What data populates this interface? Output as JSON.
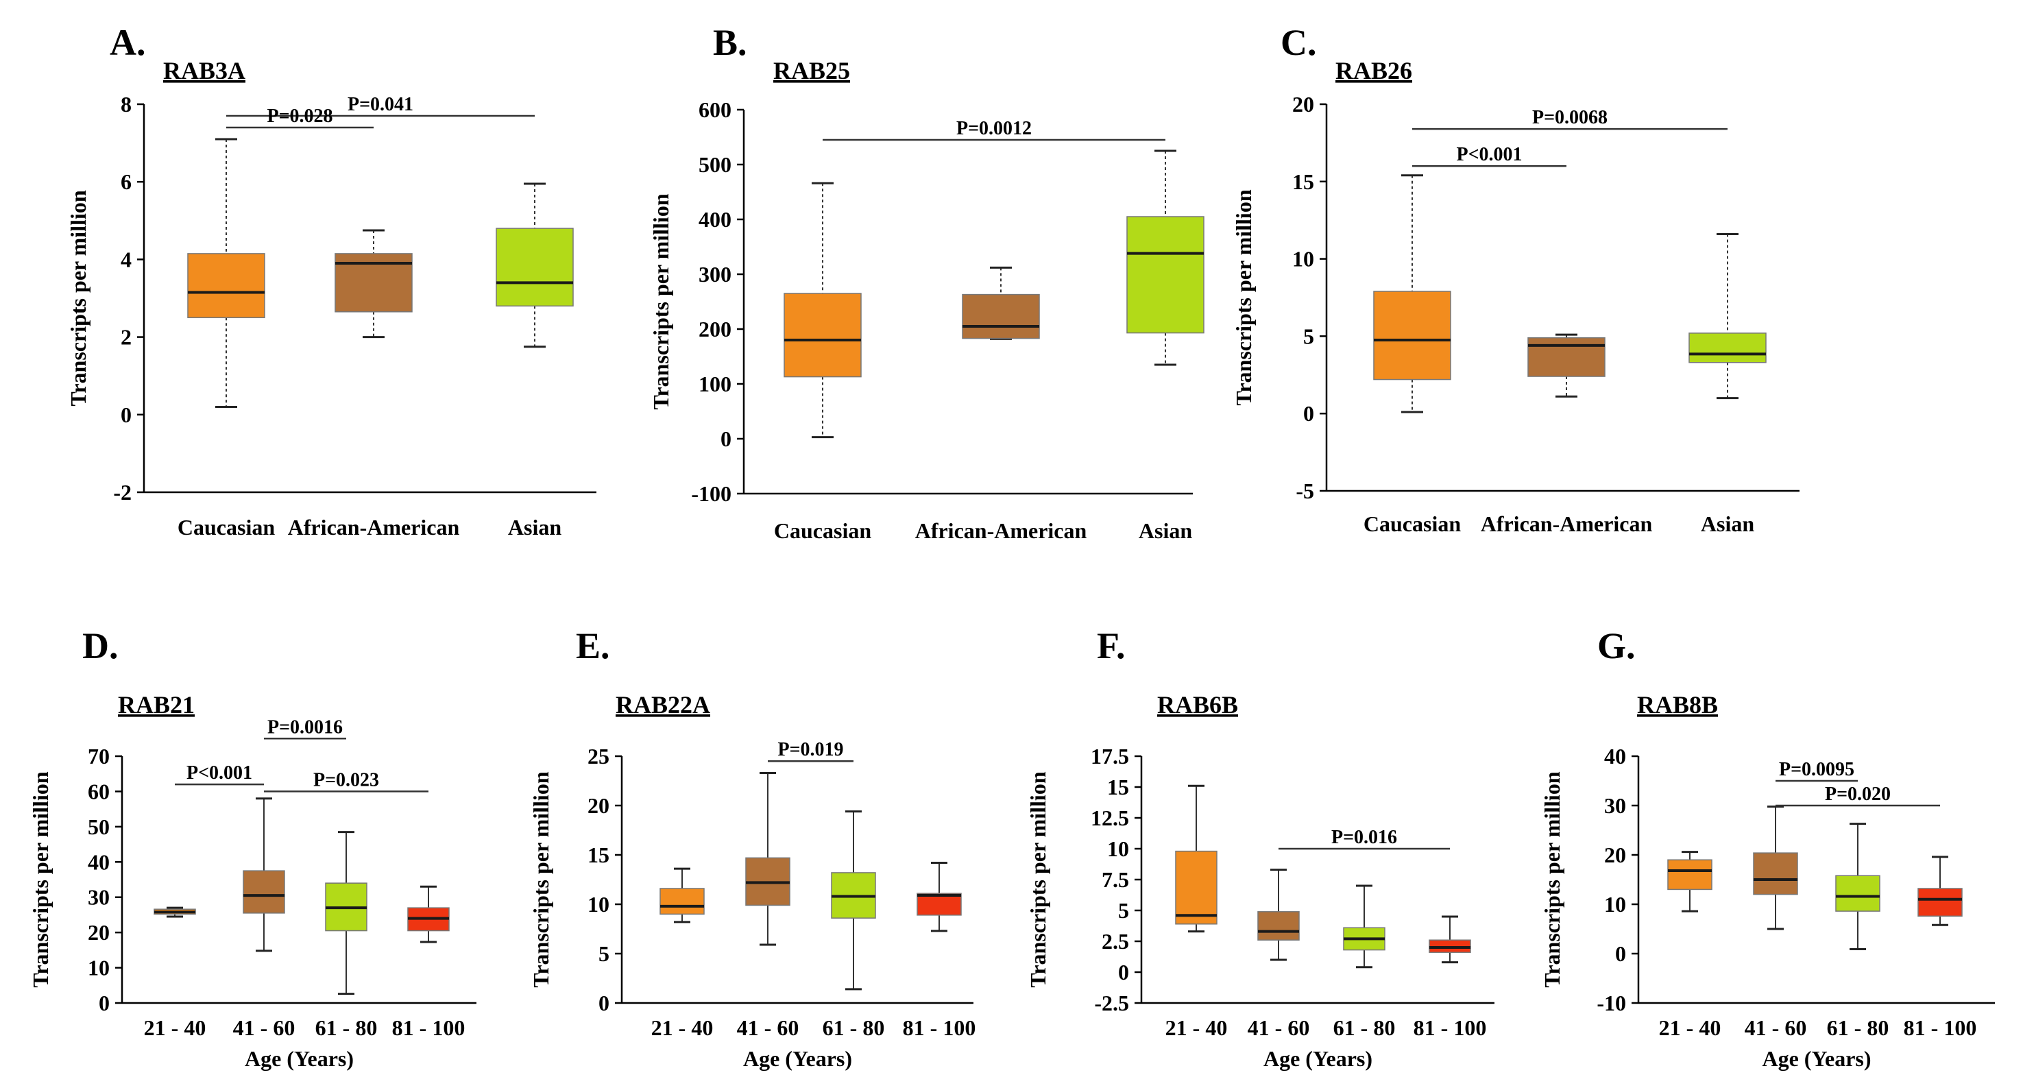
{
  "colors": {
    "orange": "#F28C1E",
    "brown": "#B07038",
    "lime": "#B2DA18",
    "red": "#EE3512"
  },
  "chart_data": [
    {
      "id": "A",
      "panel_label": "A.",
      "title": "RAB3A",
      "type": "boxplot",
      "ylabel": "Transcripts  per million",
      "xlabel": "",
      "ylim": [
        -2,
        8
      ],
      "yticks": [
        -2,
        0,
        2,
        4,
        6,
        8
      ],
      "ytick_labels": [
        "-2",
        "0",
        "2",
        "4",
        "6",
        "8"
      ],
      "categories": [
        "Caucasian",
        "African-American",
        "Asian"
      ],
      "boxes": [
        {
          "min": 0.2,
          "q1": 2.5,
          "median": 3.15,
          "q3": 4.15,
          "max": 7.1,
          "color": "orange"
        },
        {
          "min": 2.0,
          "q1": 2.65,
          "median": 3.9,
          "q3": 4.15,
          "max": 4.75,
          "color": "brown"
        },
        {
          "min": 1.75,
          "q1": 2.8,
          "median": 3.4,
          "q3": 4.8,
          "max": 5.95,
          "color": "lime"
        }
      ],
      "brackets": [
        {
          "from": 0,
          "to": 2,
          "y": 7.7,
          "label": "P=0.041"
        },
        {
          "from": 0,
          "to": 1,
          "y": 7.4,
          "label": "P=0.028"
        }
      ]
    },
    {
      "id": "B",
      "panel_label": "B.",
      "title": "RAB25",
      "type": "boxplot",
      "ylabel": "Transcripts  per million",
      "xlabel": "",
      "ylim": [
        -100,
        600
      ],
      "yticks": [
        -100,
        0,
        100,
        200,
        300,
        400,
        500,
        600
      ],
      "ytick_labels": [
        "-100",
        "0",
        "100",
        "200",
        "300",
        "400",
        "500",
        "600"
      ],
      "categories": [
        "Caucasian",
        "African-American",
        "Asian"
      ],
      "boxes": [
        {
          "min": 3,
          "q1": 113,
          "median": 180,
          "q3": 265,
          "max": 466,
          "color": "orange"
        },
        {
          "min": 182,
          "q1": 183,
          "median": 205,
          "q3": 263,
          "max": 312,
          "color": "brown"
        },
        {
          "min": 135,
          "q1": 193,
          "median": 338,
          "q3": 405,
          "max": 525,
          "color": "lime"
        }
      ],
      "brackets": [
        {
          "from": 0,
          "to": 2,
          "y": 545,
          "label": "P=0.0012"
        }
      ]
    },
    {
      "id": "C",
      "panel_label": "C.",
      "title": "RAB26",
      "type": "boxplot",
      "ylabel": "Transcripts  per million",
      "xlabel": "",
      "ylim": [
        -5,
        20
      ],
      "yticks": [
        -5,
        0,
        5,
        10,
        15,
        20
      ],
      "ytick_labels": [
        "-5",
        "0",
        "5",
        "10",
        "15",
        "20"
      ],
      "categories": [
        "Caucasian",
        "African-American",
        "Asian"
      ],
      "boxes": [
        {
          "min": 0.1,
          "q1": 2.2,
          "median": 4.75,
          "q3": 7.9,
          "max": 15.4,
          "color": "orange"
        },
        {
          "min": 1.1,
          "q1": 2.4,
          "median": 4.4,
          "q3": 4.9,
          "max": 5.1,
          "color": "brown"
        },
        {
          "min": 1.0,
          "q1": 3.3,
          "median": 3.85,
          "q3": 5.2,
          "max": 11.6,
          "color": "lime"
        }
      ],
      "brackets": [
        {
          "from": 0,
          "to": 2,
          "y": 18.4,
          "label": "P=0.0068"
        },
        {
          "from": 0,
          "to": 1,
          "y": 16.0,
          "label": "P<0.001"
        }
      ]
    },
    {
      "id": "D",
      "panel_label": "D.",
      "title": "RAB21",
      "type": "boxplot",
      "ylabel": "Transcripts  per million",
      "xlabel": "Age (Years)",
      "ylim": [
        0,
        70
      ],
      "yticks": [
        0,
        10,
        20,
        30,
        40,
        50,
        60,
        70
      ],
      "ytick_labels": [
        "0",
        "10",
        "20",
        "30",
        "40",
        "50",
        "60",
        "70"
      ],
      "categories": [
        "21 - 40",
        "41 - 60",
        "61 - 80",
        "81 - 100"
      ],
      "boxes": [
        {
          "min": 24.5,
          "q1": 25.2,
          "median": 25.8,
          "q3": 26.6,
          "max": 27.0,
          "color": "orange"
        },
        {
          "min": 14.8,
          "q1": 25.5,
          "median": 30.5,
          "q3": 37.5,
          "max": 58.0,
          "color": "brown"
        },
        {
          "min": 2.6,
          "q1": 20.5,
          "median": 27.0,
          "q3": 34.0,
          "max": 48.5,
          "color": "lime"
        },
        {
          "min": 17.3,
          "q1": 20.5,
          "median": 24.0,
          "q3": 27.0,
          "max": 33.0,
          "color": "red"
        }
      ],
      "brackets": [
        {
          "from": 1,
          "to": 2,
          "y": 75,
          "label": "P=0.0016"
        },
        {
          "from": 0,
          "to": 1,
          "y": 62,
          "label": "P<0.001"
        },
        {
          "from": 1,
          "to": 3,
          "y": 60,
          "label": "P=0.023"
        }
      ]
    },
    {
      "id": "E",
      "panel_label": "E.",
      "title": "RAB22A",
      "type": "boxplot",
      "ylabel": "Transcripts  per million",
      "xlabel": "Age (Years)",
      "ylim": [
        0,
        25
      ],
      "yticks": [
        0,
        5,
        10,
        15,
        20,
        25
      ],
      "ytick_labels": [
        "0",
        "5",
        "10",
        "15",
        "20",
        "25"
      ],
      "categories": [
        "21 - 40",
        "41 - 60",
        "61 - 80",
        "81 - 100"
      ],
      "boxes": [
        {
          "min": 8.2,
          "q1": 9.0,
          "median": 9.8,
          "q3": 11.6,
          "max": 13.6,
          "color": "orange"
        },
        {
          "min": 5.9,
          "q1": 9.9,
          "median": 12.2,
          "q3": 14.7,
          "max": 23.3,
          "color": "brown"
        },
        {
          "min": 1.4,
          "q1": 8.6,
          "median": 10.8,
          "q3": 13.2,
          "max": 19.4,
          "color": "lime"
        },
        {
          "min": 7.3,
          "q1": 8.9,
          "median": 10.9,
          "q3": 11.1,
          "max": 14.2,
          "color": "red"
        }
      ],
      "brackets": [
        {
          "from": 1,
          "to": 2,
          "y": 24.5,
          "label": "P=0.019"
        }
      ]
    },
    {
      "id": "F",
      "panel_label": "F.",
      "title": "RAB6B",
      "type": "boxplot",
      "ylabel": "Transcripts  per million",
      "xlabel": "Age (Years)",
      "ylim": [
        -2.5,
        17.5
      ],
      "yticks": [
        -2.5,
        0,
        2.5,
        5,
        7.5,
        10,
        12.5,
        15,
        17.5
      ],
      "ytick_labels": [
        "-2.5",
        "0",
        "2.5",
        "5",
        "7.5",
        "10",
        "12.5",
        "15",
        "17.5"
      ],
      "categories": [
        "21 - 40",
        "41 - 60",
        "61 - 80",
        "81 - 100"
      ],
      "boxes": [
        {
          "min": 3.3,
          "q1": 3.9,
          "median": 4.6,
          "q3": 9.8,
          "max": 15.1,
          "color": "orange"
        },
        {
          "min": 1.0,
          "q1": 2.6,
          "median": 3.3,
          "q3": 4.9,
          "max": 8.3,
          "color": "brown"
        },
        {
          "min": 0.4,
          "q1": 1.8,
          "median": 2.7,
          "q3": 3.6,
          "max": 7.0,
          "color": "lime"
        },
        {
          "min": 0.8,
          "q1": 1.6,
          "median": 2.0,
          "q3": 2.6,
          "max": 4.5,
          "color": "red"
        }
      ],
      "brackets": [
        {
          "from": 1,
          "to": 3,
          "y": 10.0,
          "label": "P=0.016"
        }
      ]
    },
    {
      "id": "G",
      "panel_label": "G.",
      "title": "RAB8B",
      "type": "boxplot",
      "ylabel": "Transcripts  per million",
      "xlabel": "Age (Years)",
      "ylim": [
        -10,
        40
      ],
      "yticks": [
        -10,
        0,
        10,
        20,
        30,
        40
      ],
      "ytick_labels": [
        "-10",
        "0",
        "10",
        "20",
        "30",
        "40"
      ],
      "categories": [
        "21 - 40",
        "41 - 60",
        "61 - 80",
        "81 - 100"
      ],
      "boxes": [
        {
          "min": 8.6,
          "q1": 13.0,
          "median": 16.8,
          "q3": 19.0,
          "max": 20.6,
          "color": "orange"
        },
        {
          "min": 5.0,
          "q1": 12.0,
          "median": 15.0,
          "q3": 20.4,
          "max": 29.8,
          "color": "brown"
        },
        {
          "min": 0.9,
          "q1": 8.6,
          "median": 11.6,
          "q3": 15.8,
          "max": 26.3,
          "color": "lime"
        },
        {
          "min": 5.8,
          "q1": 7.6,
          "median": 11.0,
          "q3": 13.2,
          "max": 19.6,
          "color": "red"
        }
      ],
      "brackets": [
        {
          "from": 1,
          "to": 2,
          "y": 35,
          "label": "P=0.0095"
        },
        {
          "from": 1,
          "to": 3,
          "y": 30,
          "label": "P=0.020"
        }
      ]
    }
  ]
}
